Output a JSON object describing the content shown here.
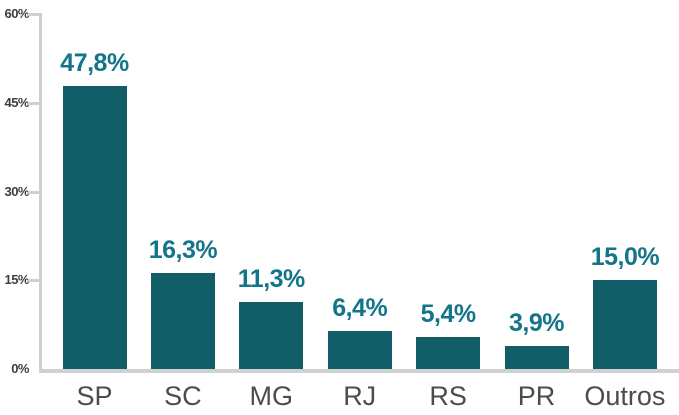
{
  "chart_data": {
    "type": "bar",
    "categories": [
      "SP",
      "SC",
      "MG",
      "RJ",
      "RS",
      "PR",
      "Outros"
    ],
    "values": [
      47.8,
      16.3,
      11.3,
      6.4,
      5.4,
      3.9,
      15.0
    ],
    "value_labels": [
      "47,8%",
      "16,3%",
      "11,3%",
      "6,4%",
      "5,4%",
      "3,9%",
      "15,0%"
    ],
    "title": "",
    "xlabel": "",
    "ylabel": "",
    "ylim": [
      0,
      60
    ],
    "y_ticks": [
      0,
      15,
      30,
      45,
      60
    ],
    "y_tick_labels": [
      "0%",
      "15%",
      "30%",
      "45%",
      "60%"
    ],
    "grid": false,
    "legend": false,
    "colors": {
      "bar": "#115e68",
      "value_label": "#13758a",
      "axis_line": "#d0d0d0",
      "tick_label": "#3e3e3e",
      "category_label": "#4c4c4c",
      "background": "#ffffff"
    }
  }
}
